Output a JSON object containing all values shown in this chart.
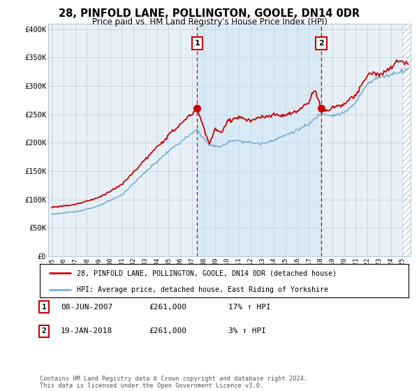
{
  "title": "28, PINFOLD LANE, POLLINGTON, GOOLE, DN14 0DR",
  "subtitle": "Price paid vs. HM Land Registry's House Price Index (HPI)",
  "ylabel_ticks": [
    "£0",
    "£50K",
    "£100K",
    "£150K",
    "£200K",
    "£250K",
    "£300K",
    "£350K",
    "£400K"
  ],
  "ytick_values": [
    0,
    50000,
    100000,
    150000,
    200000,
    250000,
    300000,
    350000,
    400000
  ],
  "ylim": [
    0,
    410000
  ],
  "xlim_start": 1994.7,
  "xlim_end": 2025.7,
  "legend_property_label": "28, PINFOLD LANE, POLLINGTON, GOOLE, DN14 0DR (detached house)",
  "legend_hpi_label": "HPI: Average price, detached house, East Riding of Yorkshire",
  "property_color": "#cc0000",
  "hpi_color": "#7ab0d4",
  "marker1_date": 2007.44,
  "marker1_price": 261000,
  "marker2_date": 2018.05,
  "marker2_price": 261000,
  "shade_color": "#daeaf5",
  "plot_bg_color": "#e8f0f7",
  "grid_color": "#c8d8e8",
  "hatch_color": "#c0ccd8"
}
